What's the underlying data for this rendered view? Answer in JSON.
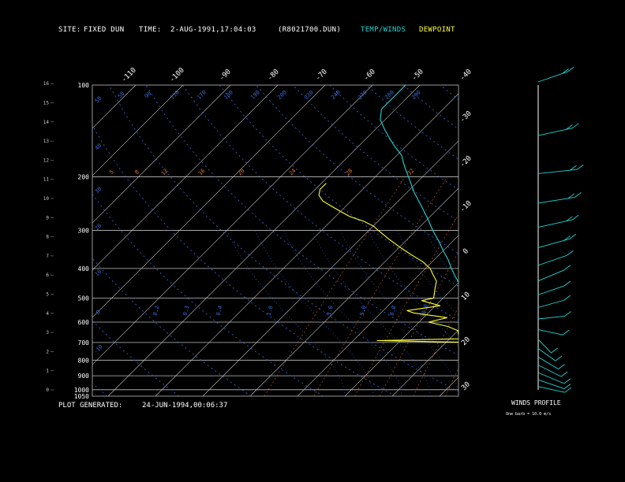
{
  "header": {
    "site_label": "SITE:",
    "site_value": "FIXED DUN",
    "time_label": "TIME:",
    "time_value": "2-AUG-1991,17:04:03",
    "file": "(R8021700.DUN)",
    "legend_temp": "TEMP/WINDS",
    "legend_dew": "DEWPOINT"
  },
  "footer": {
    "generated_label": "PLOT GENERATED:",
    "generated_value": "24-JUN-1994,00:06:37"
  },
  "winds_panel": {
    "title": "WINDS PROFILE",
    "note": "One barb = 10.0 m/s"
  },
  "colors": {
    "temp": "#22d3d3",
    "dew": "#ffff33",
    "isobar": "#bfbfbf",
    "isotherm": "#c8c8c8",
    "dry_adiabat": "#3a6ad8",
    "moist_adiabat": "#2f6fe0",
    "mixing_ratio": "#d0602a",
    "mixing_label": "#e07830"
  },
  "chart_data": {
    "type": "line",
    "pressure_labels": [
      "100",
      "200",
      "300",
      "400",
      "500",
      "600",
      "700",
      "800",
      "900",
      "1000",
      "1050"
    ],
    "pressures": [
      100,
      200,
      300,
      400,
      500,
      600,
      700,
      800,
      900,
      1000,
      1050
    ],
    "height_km_labels": [
      "0",
      "1",
      "2",
      "3",
      "4",
      "5",
      "6",
      "7",
      "8",
      "9",
      "10",
      "11",
      "12",
      "13",
      "14",
      "15",
      "16"
    ],
    "isotherm_labels": [
      "-110",
      "-100",
      "-90",
      "-80",
      "-70",
      "-60",
      "-50",
      "-40",
      "-30",
      "-20",
      "-10",
      "0",
      "10",
      "20",
      "30"
    ],
    "dry_adiabat_labels": [
      "50",
      "40",
      "30",
      "20",
      "10",
      "0",
      "-10"
    ],
    "top_theta_labels": [
      "50",
      "90",
      "110",
      "170",
      "180",
      "190",
      "200",
      "220",
      "240",
      "270",
      "280",
      "290"
    ],
    "mixing_ratio_labels": [
      "5",
      "8",
      "12",
      "16",
      "20",
      "24",
      "28",
      "32"
    ],
    "moist_adiabat_labels": [
      "0.2",
      "0.3",
      "0.4",
      "1.0",
      "3.0",
      "5.0",
      "8.0",
      "20.0"
    ],
    "series": [
      {
        "name": "TEMP/WINDS",
        "points": [
          [
            1030,
            31
          ],
          [
            1000,
            27
          ],
          [
            975,
            26
          ],
          [
            950,
            24
          ],
          [
            925,
            22
          ],
          [
            900,
            20.5
          ],
          [
            875,
            19
          ],
          [
            850,
            18
          ],
          [
            825,
            16.5
          ],
          [
            800,
            15
          ],
          [
            775,
            13.5
          ],
          [
            750,
            12
          ],
          [
            725,
            11
          ],
          [
            700,
            9.5
          ],
          [
            675,
            8
          ],
          [
            650,
            6.5
          ],
          [
            625,
            5
          ],
          [
            600,
            3
          ],
          [
            575,
            1
          ],
          [
            550,
            -1
          ],
          [
            525,
            -3
          ],
          [
            500,
            -5
          ],
          [
            475,
            -7
          ],
          [
            450,
            -9.5
          ],
          [
            425,
            -12
          ],
          [
            400,
            -14.5
          ],
          [
            375,
            -17
          ],
          [
            350,
            -20
          ],
          [
            325,
            -23
          ],
          [
            300,
            -26.5
          ],
          [
            275,
            -30
          ],
          [
            250,
            -34
          ],
          [
            225,
            -38.5
          ],
          [
            200,
            -43
          ],
          [
            190,
            -45
          ],
          [
            180,
            -47
          ],
          [
            170,
            -49
          ],
          [
            160,
            -52
          ],
          [
            150,
            -55
          ],
          [
            140,
            -58
          ],
          [
            130,
            -61
          ],
          [
            120,
            -63
          ],
          [
            110,
            -63
          ],
          [
            100,
            -63
          ]
        ]
      },
      {
        "name": "DEWPOINT",
        "points": [
          [
            900,
            18
          ],
          [
            875,
            15
          ],
          [
            850,
            13
          ],
          [
            825,
            12
          ],
          [
            800,
            11
          ],
          [
            775,
            10
          ],
          [
            750,
            10
          ],
          [
            725,
            8.5
          ],
          [
            700,
            7
          ],
          [
            690,
            -15
          ],
          [
            680,
            3
          ],
          [
            660,
            1
          ],
          [
            640,
            0
          ],
          [
            620,
            -3
          ],
          [
            600,
            -8
          ],
          [
            580,
            -5
          ],
          [
            560,
            -13
          ],
          [
            550,
            -15
          ],
          [
            530,
            -9
          ],
          [
            510,
            -14
          ],
          [
            500,
            -12
          ],
          [
            480,
            -13
          ],
          [
            460,
            -14
          ],
          [
            440,
            -15
          ],
          [
            420,
            -17
          ],
          [
            400,
            -19
          ],
          [
            380,
            -22
          ],
          [
            360,
            -26
          ],
          [
            340,
            -30
          ],
          [
            320,
            -34
          ],
          [
            300,
            -38
          ],
          [
            290,
            -40
          ],
          [
            280,
            -43
          ],
          [
            270,
            -47
          ],
          [
            260,
            -50
          ],
          [
            250,
            -53
          ],
          [
            240,
            -56
          ],
          [
            230,
            -58
          ],
          [
            220,
            -59
          ],
          [
            210,
            -59
          ]
        ]
      }
    ],
    "winds": [
      {
        "p": 1000,
        "spd": 8,
        "dir": 250
      },
      {
        "p": 950,
        "spd": 10,
        "dir": 240
      },
      {
        "p": 900,
        "spd": 12,
        "dir": 235
      },
      {
        "p": 850,
        "spd": 10,
        "dir": 230
      },
      {
        "p": 800,
        "spd": 8,
        "dir": 225
      },
      {
        "p": 750,
        "spd": 6,
        "dir": 220
      },
      {
        "p": 700,
        "spd": 5,
        "dir": 210
      },
      {
        "p": 650,
        "spd": 5,
        "dir": 250
      },
      {
        "p": 600,
        "spd": 6,
        "dir": 280
      },
      {
        "p": 550,
        "spd": 8,
        "dir": 295
      },
      {
        "p": 500,
        "spd": 10,
        "dir": 300
      },
      {
        "p": 450,
        "spd": 12,
        "dir": 305
      },
      {
        "p": 400,
        "spd": 14,
        "dir": 300
      },
      {
        "p": 350,
        "spd": 16,
        "dir": 295
      },
      {
        "p": 300,
        "spd": 18,
        "dir": 290
      },
      {
        "p": 250,
        "spd": 20,
        "dir": 285
      },
      {
        "p": 200,
        "spd": 22,
        "dir": 280
      },
      {
        "p": 150,
        "spd": 18,
        "dir": 290
      },
      {
        "p": 100,
        "spd": 15,
        "dir": 300
      }
    ]
  }
}
